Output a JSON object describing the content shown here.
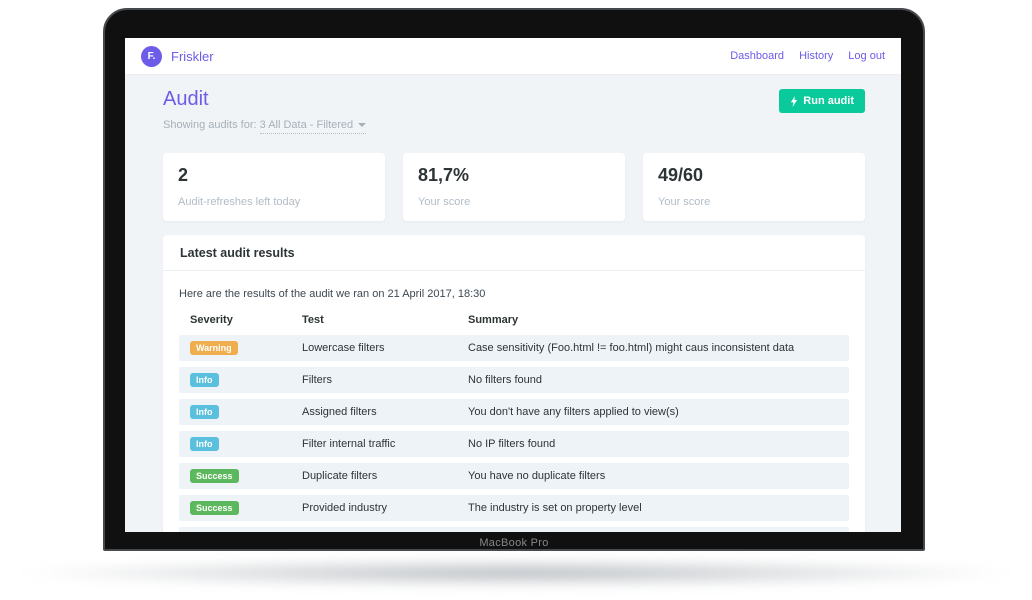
{
  "device": {
    "label": "MacBook Pro"
  },
  "header": {
    "brand": "Friskler",
    "logo_letter": "F.",
    "nav": [
      {
        "label": "Dashboard"
      },
      {
        "label": "History"
      },
      {
        "label": "Log out"
      }
    ]
  },
  "page": {
    "title": "Audit",
    "filter_prefix": "Showing audits for:",
    "filter_value": "3 All Data - Filtered",
    "run_audit_label": "Run audit"
  },
  "stats": [
    {
      "value": "2",
      "label": "Audit-refreshes left today"
    },
    {
      "value": "81,7%",
      "label": "Your score"
    },
    {
      "value": "49/60",
      "label": "Your score"
    }
  ],
  "results": {
    "title": "Latest audit results",
    "intro": "Here are the results of the audit we ran on 21 April 2017, 18:30",
    "columns": [
      "Severity",
      "Test",
      "Summary"
    ],
    "rows": [
      {
        "severity": "Warning",
        "test": "Lowercase filters",
        "summary": "Case sensitivity (Foo.html != foo.html) might caus inconsistent data"
      },
      {
        "severity": "Info",
        "test": "Filters",
        "summary": "No filters found"
      },
      {
        "severity": "Info",
        "test": "Assigned filters",
        "summary": "You don't have any filters applied to view(s)"
      },
      {
        "severity": "Info",
        "test": "Filter internal traffic",
        "summary": "No IP filters found"
      },
      {
        "severity": "Success",
        "test": "Duplicate filters",
        "summary": "You have no duplicate filters"
      },
      {
        "severity": "Success",
        "test": "Provided industry",
        "summary": "The industry is set on property level"
      }
    ]
  },
  "colors": {
    "accent_purple": "#6c5ce7",
    "button_green": "#0aca9b",
    "badge_warning": "#f0ad4e",
    "badge_info": "#5bc0de",
    "badge_success": "#5cb85c",
    "row_background": "#edf3f7",
    "content_background": "#f0f4f7"
  }
}
